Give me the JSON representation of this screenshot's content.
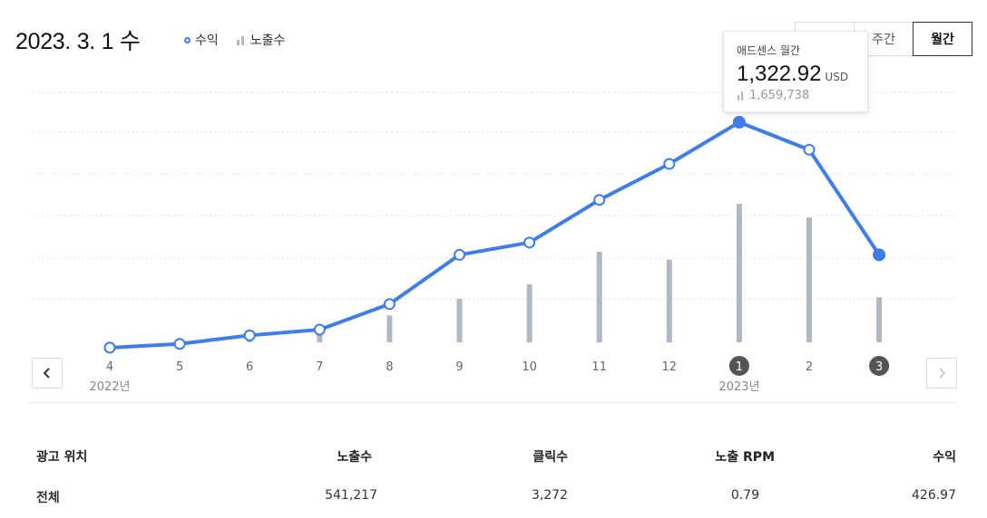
{
  "header": {
    "date": "2023. 3. 1 수",
    "legend": {
      "revenue": "수익",
      "impressions": "노출수"
    }
  },
  "period_tabs": [
    {
      "label": ""
    },
    {
      "label": "주간"
    },
    {
      "label": "월간",
      "active": true
    }
  ],
  "tooltip": {
    "title": "애드센스 월간",
    "value": "1,322.92",
    "unit": "USD",
    "impressions": "1,659,738"
  },
  "colors": {
    "line": "#3f7de8",
    "bar": "#b0b8c3",
    "badge": "#555555"
  },
  "chart_data": {
    "type": "line",
    "categories": [
      "4",
      "5",
      "6",
      "7",
      "8",
      "9",
      "10",
      "11",
      "12",
      "1",
      "2",
      "3"
    ],
    "year_labels": [
      {
        "index": 0,
        "label": "2022년"
      },
      {
        "index": 9,
        "label": "2023년"
      }
    ],
    "highlighted": [
      9,
      11
    ],
    "series": [
      {
        "name": "수익",
        "type": "line",
        "values": [
          20,
          60,
          150,
          210,
          480,
          1000,
          1130,
          1580,
          1960,
          2400,
          2110,
          1000
        ]
      },
      {
        "name": "노출수",
        "type": "bar",
        "values": [
          0,
          0,
          100000,
          130000,
          370000,
          600000,
          800000,
          1250000,
          1140000,
          1910000,
          1720000,
          620000
        ]
      }
    ],
    "grid": true
  },
  "table": {
    "headers": [
      "광고 위치",
      "노출수",
      "클릭수",
      "노출 RPM",
      "수익"
    ],
    "rows": [
      [
        "전체",
        "541,217",
        "3,272",
        "0.79",
        "426.97"
      ]
    ]
  }
}
